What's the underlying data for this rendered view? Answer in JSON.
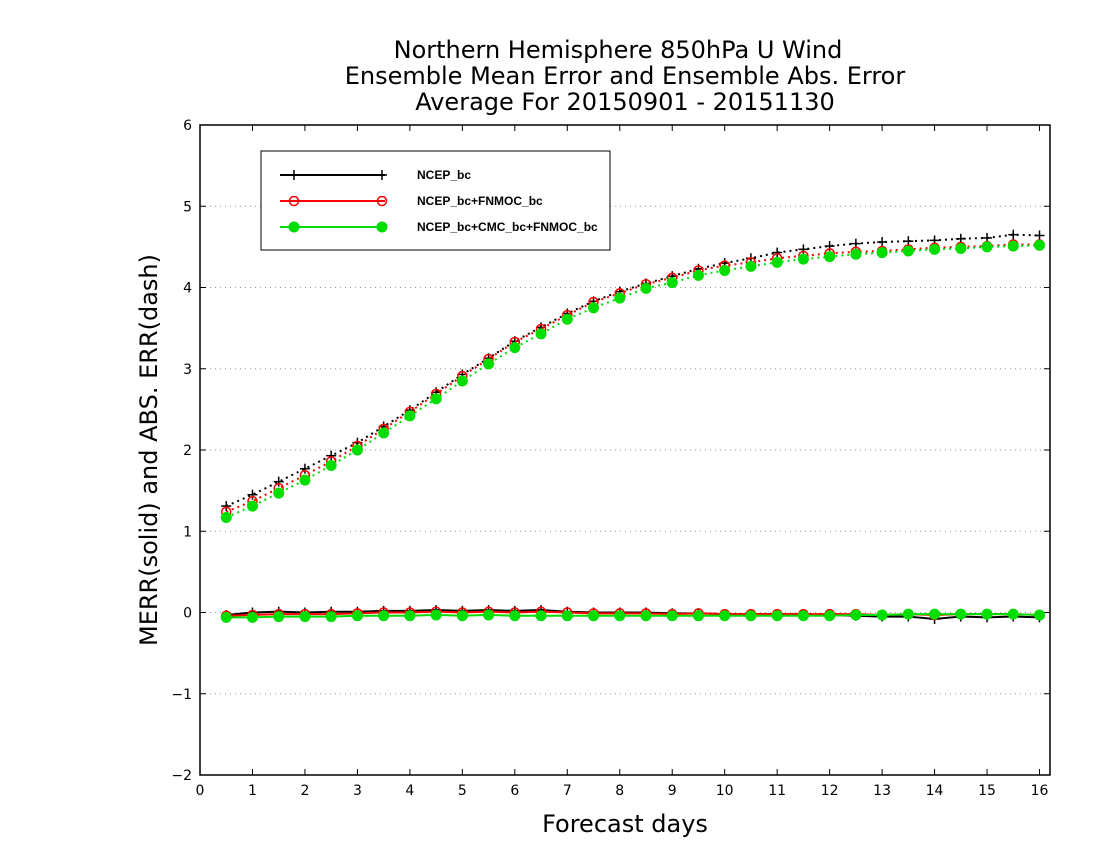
{
  "chart_data": {
    "type": "line",
    "title": [
      "Northern Hemisphere 850hPa U Wind",
      "Ensemble Mean Error and Ensemble Abs. Error",
      "Average For 20150901 - 20151130"
    ],
    "xlabel": "Forecast days",
    "ylabel": "MERR(solid) and ABS. ERR(dash)",
    "xlim": [
      0,
      16.2
    ],
    "ylim": [
      -2,
      6
    ],
    "xticks": [
      "0",
      "1",
      "2",
      "3",
      "4",
      "5",
      "6",
      "7",
      "8",
      "9",
      "10",
      "11",
      "12",
      "13",
      "14",
      "15",
      "16"
    ],
    "yticks": [
      "-2",
      "-1",
      "0",
      "1",
      "2",
      "3",
      "4",
      "5",
      "6"
    ],
    "grid": "horizontal-dotted",
    "legend_position": "top-left",
    "x": [
      0.5,
      1,
      1.5,
      2,
      2.5,
      3,
      3.5,
      4,
      4.5,
      5,
      5.5,
      6,
      6.5,
      7,
      7.5,
      8,
      8.5,
      9,
      9.5,
      10,
      10.5,
      11,
      11.5,
      12,
      12.5,
      13,
      13.5,
      14,
      14.5,
      15,
      15.5,
      16
    ],
    "series": [
      {
        "name": "NCEP_bc",
        "color": "#000000",
        "marker": "plus",
        "abs_err": [
          1.31,
          1.45,
          1.61,
          1.77,
          1.93,
          2.09,
          2.29,
          2.49,
          2.71,
          2.93,
          3.13,
          3.34,
          3.51,
          3.68,
          3.83,
          3.95,
          4.05,
          4.14,
          4.23,
          4.3,
          4.36,
          4.43,
          4.47,
          4.51,
          4.54,
          4.56,
          4.57,
          4.58,
          4.6,
          4.61,
          4.65,
          4.64
        ],
        "mean_err": [
          -0.03,
          0.0,
          0.01,
          0.0,
          0.01,
          0.01,
          0.02,
          0.02,
          0.03,
          0.02,
          0.03,
          0.02,
          0.03,
          0.01,
          0.0,
          0.0,
          0.0,
          -0.01,
          -0.01,
          -0.02,
          -0.02,
          -0.02,
          -0.02,
          -0.03,
          -0.04,
          -0.05,
          -0.05,
          -0.08,
          -0.05,
          -0.06,
          -0.05,
          -0.06
        ]
      },
      {
        "name": "NCEP_bc+FNMOC_bc",
        "color": "#ff0000",
        "marker": "open-circle",
        "abs_err": [
          1.24,
          1.37,
          1.53,
          1.69,
          1.86,
          2.05,
          2.26,
          2.47,
          2.69,
          2.91,
          3.12,
          3.33,
          3.49,
          3.66,
          3.82,
          3.93,
          4.04,
          4.12,
          4.21,
          4.27,
          4.31,
          4.36,
          4.39,
          4.42,
          4.44,
          4.45,
          4.47,
          4.49,
          4.5,
          4.51,
          4.53,
          4.53
        ],
        "mean_err": [
          -0.04,
          -0.03,
          -0.02,
          -0.02,
          -0.02,
          -0.01,
          0.0,
          0.0,
          0.01,
          0.0,
          0.01,
          0.0,
          0.01,
          0.0,
          -0.01,
          -0.01,
          -0.01,
          -0.02,
          -0.01,
          -0.02,
          -0.02,
          -0.02,
          -0.02,
          -0.02,
          -0.02,
          -0.03,
          -0.02,
          -0.03,
          -0.02,
          -0.02,
          -0.02,
          -0.03
        ]
      },
      {
        "name": "NCEP_bc+CMC_bc+FNMOC_bc",
        "color": "#00dd00",
        "marker": "filled-circle",
        "abs_err": [
          1.17,
          1.31,
          1.47,
          1.63,
          1.81,
          2.0,
          2.21,
          2.42,
          2.63,
          2.85,
          3.06,
          3.26,
          3.43,
          3.61,
          3.75,
          3.87,
          3.99,
          4.06,
          4.15,
          4.21,
          4.26,
          4.31,
          4.35,
          4.38,
          4.41,
          4.43,
          4.45,
          4.47,
          4.48,
          4.5,
          4.51,
          4.52
        ],
        "mean_err": [
          -0.06,
          -0.06,
          -0.05,
          -0.05,
          -0.05,
          -0.04,
          -0.04,
          -0.04,
          -0.03,
          -0.04,
          -0.03,
          -0.04,
          -0.04,
          -0.04,
          -0.04,
          -0.04,
          -0.04,
          -0.04,
          -0.04,
          -0.04,
          -0.04,
          -0.04,
          -0.04,
          -0.04,
          -0.03,
          -0.03,
          -0.02,
          -0.02,
          -0.02,
          -0.02,
          -0.02,
          -0.03
        ]
      }
    ]
  }
}
